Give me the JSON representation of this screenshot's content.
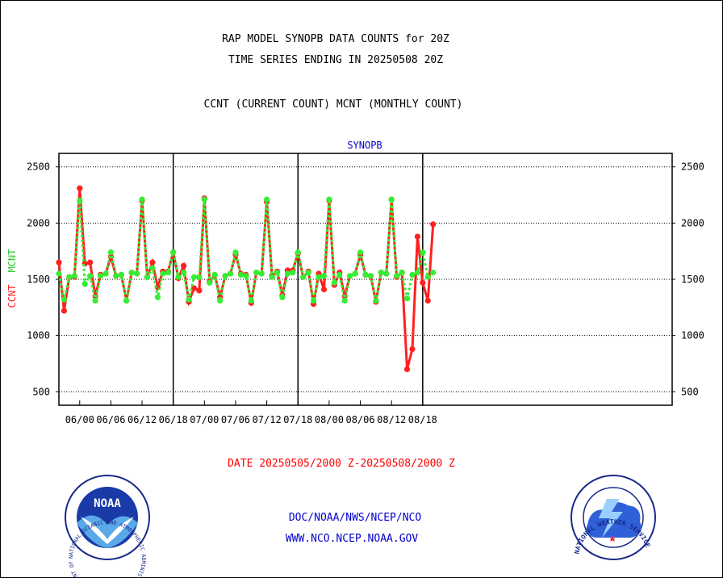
{
  "header": {
    "title_line1": "RAP MODEL SYNOPB DATA COUNTS for 20Z",
    "title_line2": "TIME SERIES ENDING IN 20250508 20Z",
    "subtitle": "CCNT (CURRENT COUNT) MCNT (MONTHLY COUNT)"
  },
  "footer": {
    "date_range": "DATE 20250505/2000 Z-20250508/2000 Z",
    "org_line": "DOC/NOAA/NWS/NCEP/NCO",
    "url": "WWW.NCO.NCEP.NOAA.GOV"
  },
  "logos": {
    "noaa_text": "NOAA",
    "noaa_ring_text": "NATIONAL OCEANIC AND ATMOSPHERIC ADMINISTRATION · U.S. DEPARTMENT OF COMMERCE ·",
    "nws_ring_text": "NATIONAL WEATHER SERVICE"
  },
  "colors": {
    "ccnt": "#ff2020",
    "mcnt": "#33ee33",
    "title": "#000000",
    "panel_label": "#0000cc",
    "footer_date": "#ff0000",
    "footer_links": "#0000cc"
  },
  "chart_data": {
    "type": "line",
    "panel_label": "SYNOPB",
    "ylabel_ccnt": "CCNT",
    "ylabel_mcnt": "MCNT",
    "ylim": [
      380,
      2620
    ],
    "yticks": [
      500,
      1000,
      1500,
      2000,
      2500
    ],
    "ytick_labels": [
      "500",
      "1000",
      "1500",
      "2000",
      "2500"
    ],
    "x_hours_from_first_label_range": [
      -4,
      114
    ],
    "xtick_hours": [
      0,
      6,
      12,
      18,
      24,
      30,
      36,
      42,
      48,
      54,
      60,
      66
    ],
    "xtick_labels": [
      "06/00",
      "06/06",
      "06/12",
      "06/18",
      "07/00",
      "07/06",
      "07/12",
      "07/18",
      "08/00",
      "08/06",
      "08/12",
      "08/18"
    ],
    "day_boundaries_hours": [
      18,
      42,
      66
    ],
    "grid": "horizontal dotted at y ticks",
    "series": [
      {
        "name": "CCNT",
        "style": "solid",
        "color": "#ff2020",
        "x": [
          -4,
          -3,
          -2,
          -1,
          0,
          1,
          2,
          3,
          4,
          5,
          6,
          7,
          8,
          9,
          10,
          11,
          12,
          13,
          14,
          15,
          16,
          17,
          18,
          19,
          20,
          21,
          22,
          23,
          24,
          25,
          26,
          27,
          28,
          29,
          30,
          31,
          32,
          33,
          34,
          35,
          36,
          37,
          38,
          39,
          40,
          41,
          42,
          43,
          44,
          45,
          46,
          47,
          48,
          49,
          50,
          51,
          52,
          53,
          54,
          55,
          56,
          57,
          58,
          59,
          60,
          61,
          62,
          63,
          64,
          65,
          66,
          67,
          68
        ],
        "y": [
          1650,
          1220,
          1520,
          1520,
          2310,
          1640,
          1650,
          1350,
          1540,
          1550,
          1700,
          1530,
          1540,
          1310,
          1560,
          1550,
          2200,
          1520,
          1650,
          1430,
          1570,
          1570,
          1740,
          1510,
          1620,
          1300,
          1420,
          1400,
          2220,
          1480,
          1540,
          1340,
          1530,
          1550,
          1720,
          1550,
          1540,
          1290,
          1560,
          1550,
          2190,
          1530,
          1570,
          1360,
          1580,
          1580,
          1730,
          1520,
          1570,
          1280,
          1550,
          1410,
          2200,
          1450,
          1560,
          1350,
          1530,
          1550,
          1720,
          1540,
          1530,
          1300,
          1560,
          1550,
          2210,
          1520,
          1560,
          700,
          880,
          1880,
          1470,
          1310,
          1990
        ]
      },
      {
        "name": "MCNT",
        "style": "dotted",
        "color": "#33ee33",
        "x": [
          -4,
          -3,
          -2,
          -1,
          0,
          1,
          2,
          3,
          4,
          5,
          6,
          7,
          8,
          9,
          10,
          11,
          12,
          13,
          14,
          15,
          16,
          17,
          18,
          19,
          20,
          21,
          22,
          23,
          24,
          25,
          26,
          27,
          28,
          29,
          30,
          31,
          32,
          33,
          34,
          35,
          36,
          37,
          38,
          39,
          40,
          41,
          42,
          43,
          44,
          45,
          46,
          47,
          48,
          49,
          50,
          51,
          52,
          53,
          54,
          55,
          56,
          57,
          58,
          59,
          60,
          61,
          62,
          63,
          64,
          65,
          66,
          67,
          68
        ],
        "y": [
          1550,
          1320,
          1520,
          1530,
          2200,
          1460,
          1530,
          1310,
          1530,
          1550,
          1740,
          1530,
          1540,
          1310,
          1560,
          1550,
          2210,
          1520,
          1600,
          1340,
          1550,
          1560,
          1740,
          1520,
          1560,
          1320,
          1520,
          1520,
          2210,
          1470,
          1540,
          1310,
          1530,
          1550,
          1740,
          1540,
          1530,
          1310,
          1560,
          1550,
          2210,
          1520,
          1560,
          1340,
          1550,
          1560,
          1740,
          1520,
          1560,
          1310,
          1520,
          1530,
          2210,
          1470,
          1540,
          1310,
          1530,
          1550,
          1740,
          1540,
          1530,
          1310,
          1560,
          1550,
          2210,
          1530,
          1560,
          1330,
          1540,
          1560,
          1740,
          1520,
          1560
        ]
      }
    ]
  }
}
